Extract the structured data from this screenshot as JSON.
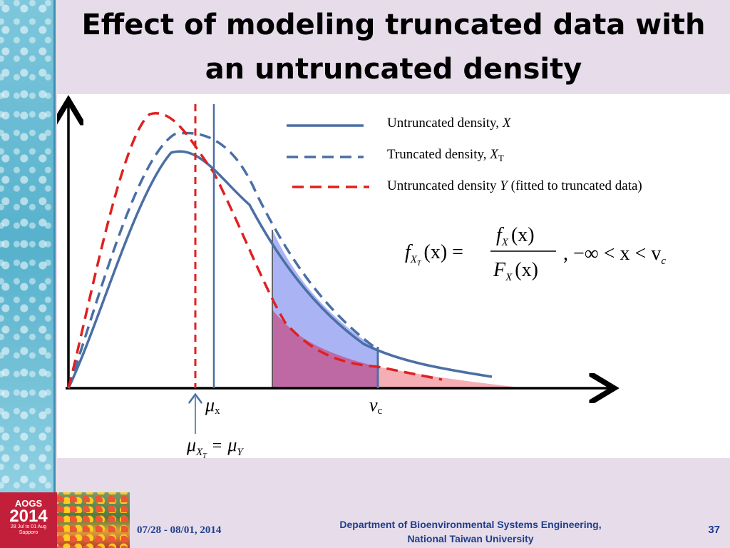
{
  "slide": {
    "title": "Effect of modeling truncated data with an untruncated density"
  },
  "legend": {
    "items": [
      {
        "text": "Untruncated density, ",
        "var": "X",
        "sub": "",
        "rest": "",
        "color": "#4a6fa5",
        "style": "solid"
      },
      {
        "text": "Truncated density, ",
        "var": "X",
        "sub": "T",
        "rest": "",
        "color": "#4a6fa5",
        "style": "dashed"
      },
      {
        "text": "Untruncated density ",
        "var": "Y",
        "sub": "",
        "rest": " (fitted to truncated data)",
        "color": "#e02020",
        "style": "dashed"
      }
    ]
  },
  "formula": {
    "lhs_f": "f",
    "lhs_sub": "X",
    "lhs_subsub": "T",
    "lhs_arg": "(x) =",
    "num_f": "f",
    "num_sub": "X",
    "num_arg": "(x)",
    "den_f": "F",
    "den_sub": "X",
    "den_arg": "(x)",
    "cond": ",  −∞ < x < v",
    "cond_sub": "c"
  },
  "axis_labels": {
    "mu": "μ",
    "mu_sub": "x",
    "v": "v",
    "v_sub": "c",
    "bottom_mu1": "μ",
    "bottom_sub1": "X",
    "bottom_subsub1": "T",
    "bottom_eq": "=",
    "bottom_mu2": "μ",
    "bottom_sub2": "Y"
  },
  "colors": {
    "blue": "#4a6fa5",
    "red": "#e02020",
    "blue_fill": "#aab4f5",
    "red_fill": "#f4a0a8",
    "overlap_fill": "#c0609a"
  },
  "footer": {
    "logo_name": "AOGS",
    "logo_year": "2014",
    "logo_sub1": "28 Jul to 01 Aug",
    "logo_sub2": "Sapporo",
    "date": "07/28 - 08/01, 2014",
    "dept_line1": "Department of Bioenvironmental Systems Engineering,",
    "dept_line2": "National Taiwan University",
    "page": "37"
  }
}
